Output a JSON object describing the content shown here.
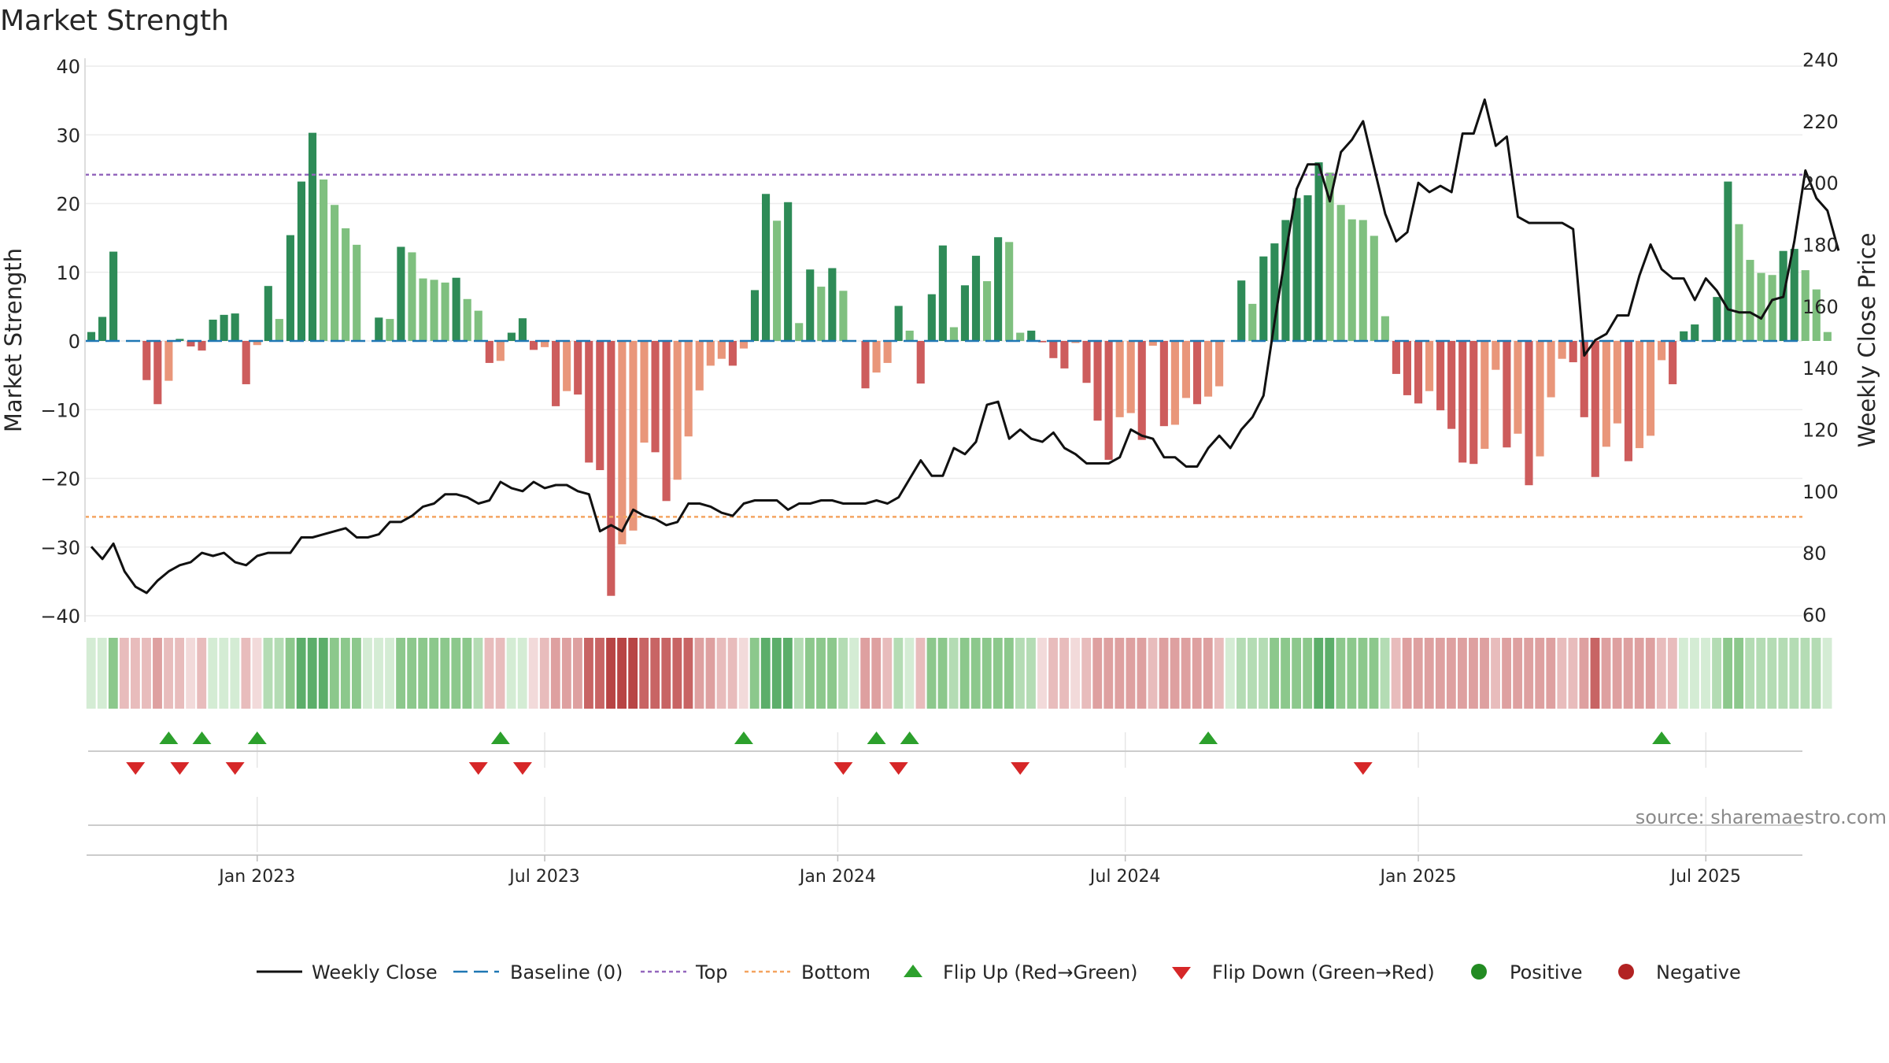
{
  "title": "Market Strength",
  "source": "source: sharemaestro.com",
  "colors": {
    "strong_green": "#2e8b57",
    "light_green": "#7fc07f",
    "strong_red": "#cd5c5c",
    "light_red": "#e9967a",
    "line": "#111111",
    "baseline": "#1f77b4",
    "top": "#9467bd",
    "bottom": "#f4a460",
    "flip_up": "#2ca02c",
    "flip_down": "#d62728",
    "positive": "#228b22",
    "negative": "#b22222"
  },
  "chart_data": {
    "type": "bar",
    "title": "Market Strength",
    "ylabel": "Market Strength",
    "y2label": "Weekly Close Price",
    "ylim": [
      -40,
      40
    ],
    "y2lim": [
      55,
      245
    ],
    "yticks": [
      "40",
      "30",
      "20",
      "10",
      "0",
      "−10",
      "−20",
      "−30",
      "−40"
    ],
    "y2ticks": [
      "240",
      "220",
      "200",
      "180",
      "160",
      "140",
      "120",
      "100",
      "80",
      "60"
    ],
    "xticks": [
      {
        "label": "Jan 2023",
        "week": 15
      },
      {
        "label": "Jul 2023",
        "week": 41
      },
      {
        "label": "Jan 2024",
        "week": 67.5
      },
      {
        "label": "Jul 2024",
        "week": 93.5
      },
      {
        "label": "Jan 2025",
        "week": 120
      },
      {
        "label": "Jul 2025",
        "week": 146
      }
    ],
    "top_level": 24.2,
    "bottom_level": -25.6,
    "strength": [
      1.3,
      3.5,
      13,
      0,
      0.1,
      -5.7,
      -9.2,
      -5.8,
      0.3,
      -0.8,
      -1.4,
      3.1,
      3.8,
      4,
      -6.3,
      -0.6,
      8,
      3.2,
      15.4,
      23.2,
      30.3,
      23.5,
      19.8,
      16.4,
      14,
      0,
      3.4,
      3.2,
      13.7,
      12.9,
      9.1,
      8.9,
      8.5,
      9.2,
      6.1,
      4.4,
      -3.2,
      -2.9,
      1.2,
      3.3,
      -1.3,
      -0.9,
      -9.5,
      -7.3,
      -7.8,
      -17.7,
      -18.8,
      -37.1,
      -29.6,
      -27.6,
      -14.8,
      -16.2,
      -23.3,
      -20.2,
      -13.9,
      -7.2,
      -3.6,
      -2.6,
      -3.6,
      -1.1,
      7.4,
      21.4,
      17.5,
      20.2,
      2.6,
      10.4,
      7.9,
      10.6,
      7.3,
      0,
      -6.9,
      -4.6,
      -3.2,
      5.1,
      1.5,
      -6.2,
      6.8,
      13.9,
      2,
      8.1,
      12.4,
      8.7,
      15.1,
      14.4,
      1.2,
      1.5,
      -0.2,
      -2.5,
      -4,
      -0.3,
      -6.1,
      -11.6,
      -17.3,
      -11.1,
      -10.5,
      -14.4,
      -0.7,
      -12.4,
      -12.2,
      -8.3,
      -9.2,
      -8.1,
      -6.6,
      0,
      8.8,
      5.4,
      12.3,
      14.2,
      17.6,
      20.8,
      21.2,
      26,
      24.5,
      19.8,
      17.7,
      17.6,
      15.3,
      3.6,
      -4.8,
      -7.9,
      -9.1,
      -7.3,
      -10.1,
      -12.8,
      -17.7,
      -17.9,
      -15.7,
      -4.2,
      -15.5,
      -13.5,
      -21,
      -16.8,
      -8.2,
      -2.6,
      -3.1,
      -11.1,
      -19.8,
      -15.4,
      -12,
      -17.5,
      -15.6,
      -13.8,
      -2.8,
      -6.3,
      1.4,
      2.4,
      0,
      6.4,
      23.2,
      17,
      11.8,
      9.9,
      9.6,
      13.1,
      13.4,
      10.3,
      7.5,
      1.3
    ],
    "close": [
      82,
      78,
      83,
      74,
      69,
      67,
      71,
      74,
      76,
      77,
      80,
      79,
      80,
      77,
      76,
      79,
      80,
      80,
      80,
      85,
      85,
      86,
      87,
      88,
      85,
      85,
      86,
      90,
      90,
      92,
      95,
      96,
      99,
      99,
      98,
      96,
      97,
      103,
      101,
      100,
      103,
      101,
      102,
      102,
      100,
      99,
      87,
      89,
      87,
      94,
      92,
      91,
      89,
      90,
      96,
      96,
      95,
      93,
      92,
      96,
      97,
      97,
      97,
      94,
      96,
      96,
      97,
      97,
      96,
      96,
      96,
      97,
      96,
      98,
      104,
      110,
      105,
      105,
      114,
      112,
      116,
      128,
      129,
      117,
      120,
      117,
      116,
      119,
      114,
      112,
      109,
      109,
      109,
      111,
      120,
      118,
      117,
      111,
      111,
      108,
      108,
      114,
      118,
      114,
      120,
      124,
      131,
      155,
      177,
      198,
      206,
      206,
      194,
      210,
      214,
      220,
      205,
      190,
      181,
      184,
      200,
      197,
      199,
      197,
      216,
      216,
      227,
      212,
      215,
      189,
      187,
      187,
      187,
      187,
      185,
      144,
      149,
      151,
      157,
      157,
      170,
      180,
      172,
      169,
      169,
      162,
      169,
      165,
      159,
      158,
      158,
      156,
      162,
      163,
      181,
      204,
      195,
      191,
      178
    ],
    "heat": [
      1,
      1,
      3,
      -2,
      -2,
      -2,
      -3,
      -2,
      -2,
      -1,
      -2,
      1,
      1,
      1,
      -2,
      -1,
      2,
      2,
      3,
      4,
      4,
      4,
      3,
      3,
      3,
      1,
      1,
      1,
      3,
      3,
      3,
      3,
      3,
      3,
      3,
      2,
      -2,
      -2,
      1,
      1,
      -1,
      -2,
      -3,
      -3,
      -3,
      -4,
      -4,
      -5,
      -5,
      -5,
      -4,
      -4,
      -4,
      -4,
      -4,
      -3,
      -3,
      -2,
      -2,
      -1,
      3,
      4,
      4,
      4,
      2,
      3,
      3,
      3,
      2,
      1,
      -3,
      -3,
      -2,
      2,
      1,
      -2,
      3,
      3,
      2,
      3,
      3,
      3,
      3,
      3,
      2,
      2,
      -1,
      -2,
      -2,
      -1,
      -2,
      -3,
      -3,
      -3,
      -3,
      -3,
      -2,
      -3,
      -3,
      -3,
      -3,
      -3,
      -2,
      1,
      2,
      2,
      2,
      3,
      3,
      3,
      3,
      4,
      4,
      3,
      3,
      3,
      3,
      2,
      -2,
      -3,
      -3,
      -3,
      -3,
      -3,
      -3,
      -3,
      -3,
      -2,
      -3,
      -3,
      -3,
      -3,
      -3,
      -2,
      -2,
      -3,
      -4,
      -3,
      -3,
      -3,
      -3,
      -3,
      -2,
      -2,
      1,
      1,
      1,
      2,
      3,
      3,
      2,
      2,
      2,
      2,
      2,
      2,
      2,
      1
    ],
    "flip_up_weeks": [
      7,
      10,
      15,
      37,
      59,
      71,
      74,
      101,
      142
    ],
    "flip_down_weeks": [
      4,
      8,
      13,
      35,
      39,
      68,
      73,
      84,
      115
    ],
    "legend": [
      "Weekly Close",
      "Baseline (0)",
      "Top",
      "Bottom",
      "Flip Up (Red→Green)",
      "Flip Down (Green→Red)",
      "Positive",
      "Negative"
    ],
    "legend_position": "bottom",
    "grid": true
  }
}
